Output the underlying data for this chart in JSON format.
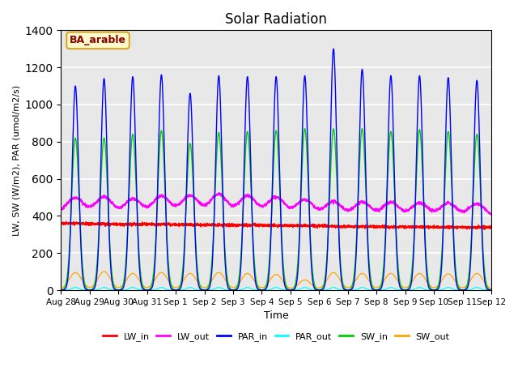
{
  "title": "Solar Radiation",
  "xlabel": "Time",
  "ylabel": "LW, SW (W/m2), PAR (umol/m2/s)",
  "ylim": [
    0,
    1400
  ],
  "yticks": [
    0,
    200,
    400,
    600,
    800,
    1000,
    1200,
    1400
  ],
  "annotation_text": "BA_arable",
  "annotation_color": "#8B0000",
  "annotation_bg": "#FFFACD",
  "annotation_border": "#DAA520",
  "colors": {
    "LW_in": "#FF0000",
    "LW_out": "#FF00FF",
    "PAR_in": "#0000FF",
    "PAR_out": "#00FFFF",
    "SW_in": "#00CC00",
    "SW_out": "#FFA500"
  },
  "n_days": 15,
  "tick_labels": [
    "Aug 28",
    "Aug 29",
    "Aug 30",
    "Aug 31",
    "Sep 1",
    "Sep 2",
    "Sep 3",
    "Sep 4",
    "Sep 5",
    "Sep 6",
    "Sep 7",
    "Sep 8",
    "Sep 9",
    "Sep 10",
    "Sep 11",
    "Sep 12"
  ]
}
